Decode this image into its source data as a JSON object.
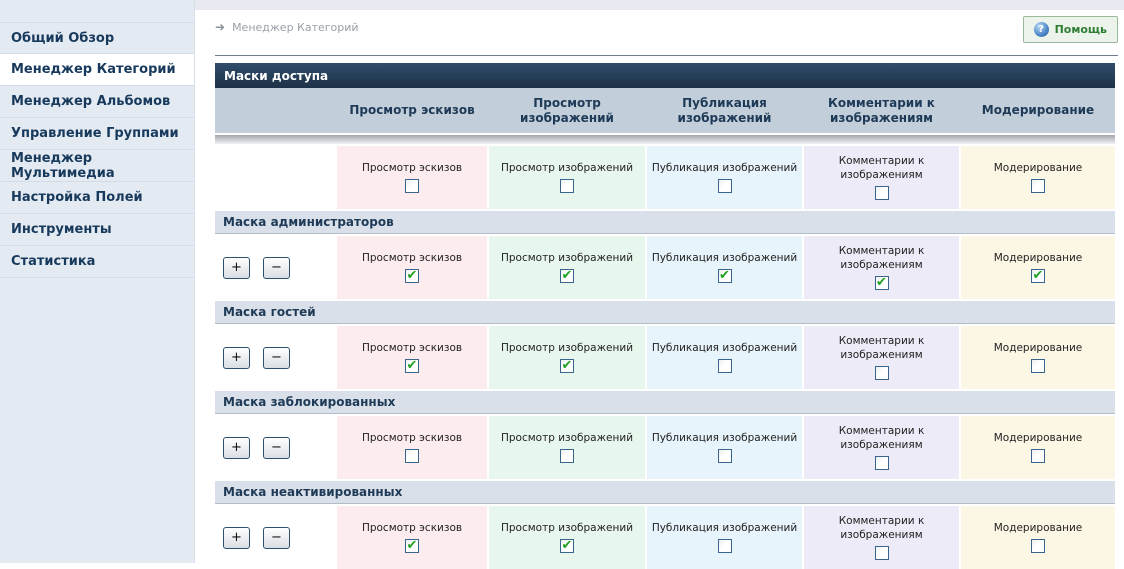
{
  "sidebar": {
    "items": [
      {
        "label": "Общий Обзор",
        "active": false
      },
      {
        "label": "Менеджер Категорий",
        "active": true
      },
      {
        "label": "Менеджер Альбомов",
        "active": false
      },
      {
        "label": "Управление Группами",
        "active": false
      },
      {
        "label": "Менеджер Мультимедиа",
        "active": false
      },
      {
        "label": "Настройка Полей",
        "active": false
      },
      {
        "label": "Инструменты",
        "active": false
      },
      {
        "label": "Статистика",
        "active": false
      }
    ]
  },
  "header": {
    "breadcrumb": "Менеджер Категорий",
    "help_label": "Помощь"
  },
  "panel": {
    "title": "Маски доступа",
    "columns": [
      "Просмотр эскизов",
      "Просмотр изображений",
      "Публикация изображений",
      "Комментарии к изображениям",
      "Модерирование"
    ],
    "masks": [
      {
        "name": "",
        "has_buttons": false,
        "checks": [
          false,
          false,
          false,
          false,
          false
        ]
      },
      {
        "name": "Маска администраторов",
        "has_buttons": true,
        "checks": [
          true,
          true,
          true,
          true,
          true
        ]
      },
      {
        "name": "Маска гостей",
        "has_buttons": true,
        "checks": [
          true,
          true,
          false,
          false,
          false
        ]
      },
      {
        "name": "Маска заблокированных",
        "has_buttons": true,
        "checks": [
          false,
          false,
          false,
          false,
          false
        ]
      },
      {
        "name": "Маска неактивированных",
        "has_buttons": true,
        "checks": [
          true,
          true,
          false,
          false,
          false
        ]
      }
    ]
  },
  "icons": {
    "breadcrumb_arrow": "➜",
    "help": "?",
    "plus": "+",
    "minus": "−",
    "checkmark": "✔"
  },
  "colors": {
    "cells": [
      "#fdecee",
      "#e8f7ed",
      "#e8f4fb",
      "#edebf7",
      "#fcf6e5"
    ],
    "header_bar": "#24405c",
    "column_header_bg": "#c2cfdb",
    "section_header_bg": "#d9e0e9",
    "sidebar_bg": "#e4eaf2",
    "help_green": "#2e7d32",
    "check_green": "#1fa01f"
  }
}
